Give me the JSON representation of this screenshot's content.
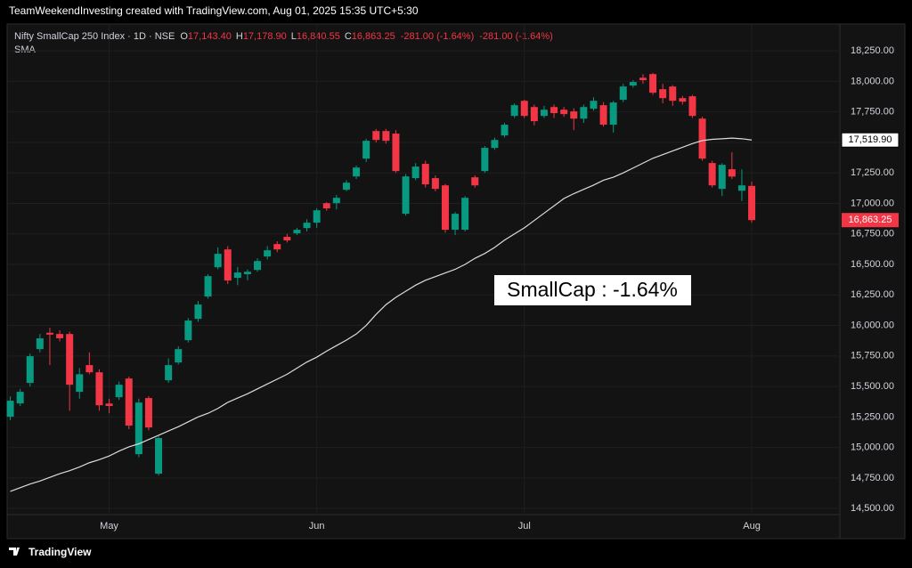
{
  "credit": "TeamWeekendInvesting created with TradingView.com, Aug 01, 2025 15:35 UTC+5:30",
  "legend": {
    "symbol": "Nifty SmallCap 250 Index · 1D · NSE",
    "ohlc": [
      {
        "letter": "O",
        "value": "17,143.40"
      },
      {
        "letter": "H",
        "value": "17,178.90"
      },
      {
        "letter": "L",
        "value": "16,840.55"
      },
      {
        "letter": "C",
        "value": "16,863.25"
      }
    ],
    "changes": [
      "-281.00 (-1.64%)",
      "-281.00 (-1.64%)"
    ],
    "indicator": "SMA"
  },
  "annotation": "SmallCap : -1.64%",
  "footer": "TradingView",
  "chart_data": {
    "type": "candlestick",
    "categories": [
      null,
      null,
      null,
      null,
      null,
      null,
      null,
      null,
      null,
      null,
      "May",
      null,
      null,
      null,
      null,
      null,
      null,
      null,
      null,
      null,
      null,
      null,
      null,
      null,
      null,
      null,
      null,
      null,
      null,
      null,
      null,
      "Jun",
      null,
      null,
      null,
      null,
      null,
      null,
      null,
      null,
      null,
      null,
      null,
      null,
      null,
      null,
      null,
      null,
      null,
      null,
      null,
      null,
      "Jul",
      null,
      null,
      null,
      null,
      null,
      null,
      null,
      null,
      null,
      null,
      null,
      null,
      null,
      null,
      null,
      null,
      null,
      null,
      null,
      null,
      null,
      null,
      "Aug"
    ],
    "series": [
      {
        "name": "Nifty SmallCap 250 Index · 1D · NSE",
        "type": "candlestick",
        "up_color": "#089981",
        "down_color": "#f23645",
        "last_label": "16,863.25",
        "open": [
          15252,
          15361,
          15529,
          15806,
          15940,
          15930,
          15930,
          15456,
          15675,
          15616,
          15360,
          15412,
          15565,
          14945,
          15405,
          14785,
          15551,
          15697,
          15879,
          16054,
          16237,
          16477,
          16623,
          16390,
          16420,
          16455,
          16565,
          16667,
          16726,
          16755,
          16798,
          16842,
          17002,
          17002,
          17112,
          17221,
          17367,
          17593,
          17593,
          17572,
          16915,
          17207,
          17324,
          17207,
          17148,
          16784,
          16784,
          17214,
          17265,
          17455,
          17557,
          17717,
          17841,
          17790,
          17717,
          17790,
          17768,
          17754,
          17695,
          17776,
          17805,
          17645,
          17849,
          17966,
          18030,
          18060,
          17936,
          17958,
          17863,
          17878,
          17695,
          17331,
          17119,
          17280,
          17104,
          17143.4
        ],
        "high": [
          15419,
          15480,
          15770,
          15930,
          15980,
          15960,
          15950,
          15650,
          15780,
          15640,
          15400,
          15540,
          15580,
          15400,
          15420,
          15090,
          15730,
          15830,
          16060,
          16200,
          16420,
          16640,
          16650,
          16480,
          16460,
          16550,
          16650,
          16690,
          16750,
          16800,
          16870,
          16960,
          17010,
          17070,
          17190,
          17310,
          17530,
          17610,
          17610,
          17600,
          17240,
          17330,
          17350,
          17230,
          17160,
          16930,
          17060,
          17230,
          17470,
          17540,
          17660,
          17820,
          17850,
          17810,
          17800,
          17810,
          17790,
          17780,
          17810,
          17870,
          17830,
          17840,
          17980,
          18010,
          18060,
          18070,
          17980,
          17970,
          17880,
          17890,
          17710,
          17350,
          17330,
          17420,
          17280,
          17178.9
        ],
        "low": [
          15223,
          15340,
          15500,
          15780,
          15675,
          15870,
          15300,
          15400,
          15600,
          15300,
          15280,
          15390,
          15150,
          14920,
          15140,
          14770,
          15530,
          15680,
          15860,
          16030,
          16220,
          16460,
          16340,
          16330,
          16370,
          16440,
          16540,
          16600,
          16680,
          16740,
          16770,
          16800,
          16940,
          16950,
          17100,
          17200,
          17340,
          17500,
          17490,
          17250,
          16900,
          17190,
          17130,
          17100,
          16760,
          16740,
          16770,
          17130,
          17250,
          17440,
          17540,
          17700,
          17700,
          17640,
          17700,
          17700,
          17710,
          17600,
          17660,
          17760,
          17630,
          17580,
          17830,
          17950,
          17980,
          17890,
          17820,
          17800,
          17810,
          17700,
          17350,
          17130,
          17060,
          17200,
          17020,
          16840.55
        ],
        "close": [
          15383,
          15456,
          15748,
          15894,
          15925,
          15895,
          15514,
          15600,
          15616,
          15346,
          15340,
          15514,
          15179,
          15368,
          15164,
          15077,
          15675,
          15806,
          16040,
          16171,
          16404,
          16587,
          16368,
          16434,
          16440,
          16528,
          16616,
          16623,
          16697,
          16784,
          16842,
          16944,
          16959,
          17046,
          17170,
          17294,
          17513,
          17520,
          17513,
          17265,
          17221,
          17302,
          17156,
          17119,
          16784,
          16915,
          17046,
          17148,
          17455,
          17520,
          17645,
          17805,
          17717,
          17674,
          17768,
          17740,
          17732,
          17695,
          17790,
          17841,
          17645,
          17827,
          17958,
          17995,
          18010,
          17907,
          17863,
          17841,
          17834,
          17717,
          17367,
          17148,
          17316,
          17220,
          17148,
          16863.25
        ]
      },
      {
        "name": "SMA",
        "type": "line",
        "color": "#dcdcdc",
        "last_label": "17,519.90",
        "values": [
          14640,
          14670,
          14700,
          14725,
          14755,
          14785,
          14810,
          14840,
          14875,
          14900,
          14930,
          14970,
          15005,
          15030,
          15065,
          15100,
          15135,
          15170,
          15210,
          15250,
          15280,
          15320,
          15370,
          15405,
          15440,
          15480,
          15520,
          15560,
          15600,
          15650,
          15700,
          15740,
          15790,
          15835,
          15880,
          15930,
          16000,
          16090,
          16170,
          16230,
          16280,
          16330,
          16370,
          16400,
          16430,
          16460,
          16500,
          16550,
          16590,
          16640,
          16700,
          16750,
          16800,
          16860,
          16920,
          16980,
          17040,
          17080,
          17115,
          17150,
          17190,
          17215,
          17250,
          17290,
          17330,
          17370,
          17400,
          17430,
          17460,
          17490,
          17515,
          17525,
          17530,
          17535,
          17530,
          17519.9
        ]
      }
    ],
    "ylim": [
      14450,
      18470
    ],
    "yticks": [
      {
        "value": 14500,
        "label": "14,500.00"
      },
      {
        "value": 14750,
        "label": "14,750.00"
      },
      {
        "value": 15000,
        "label": "15,000.00"
      },
      {
        "value": 15250,
        "label": "15,250.00"
      },
      {
        "value": 15500,
        "label": "15,500.00"
      },
      {
        "value": 15750,
        "label": "15,750.00"
      },
      {
        "value": 16000,
        "label": "16,000.00"
      },
      {
        "value": 16250,
        "label": "16,250.00"
      },
      {
        "value": 16500,
        "label": "16,500.00"
      },
      {
        "value": 16750,
        "label": "16,750.00"
      },
      {
        "value": 17000,
        "label": "17,000.00"
      },
      {
        "value": 17250,
        "label": "17,250.00"
      },
      {
        "value": 17500,
        "label": "17,500.00"
      },
      {
        "value": 17750,
        "label": "17,750.00"
      },
      {
        "value": 18000,
        "label": "18,000.00"
      },
      {
        "value": 18250,
        "label": "18,250.00"
      }
    ],
    "grid": true
  }
}
